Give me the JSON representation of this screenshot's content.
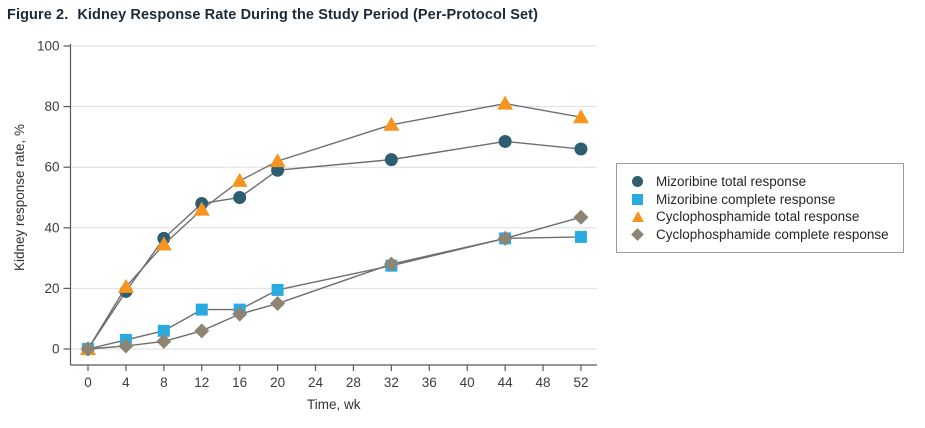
{
  "figure": {
    "label": "Figure 2.",
    "title": "Kidney Response Rate During the Study Period (Per-Protocol Set)"
  },
  "chart_data": {
    "type": "line",
    "x": [
      0,
      4,
      8,
      12,
      16,
      20,
      32,
      44,
      52
    ],
    "x_ticks": [
      0,
      4,
      8,
      12,
      16,
      20,
      24,
      28,
      32,
      36,
      40,
      44,
      48,
      52
    ],
    "y_ticks": [
      0,
      20,
      40,
      60,
      80,
      100
    ],
    "xlabel": "Time, wk",
    "ylabel": "Kidney response rate, %",
    "xlim": [
      0,
      52
    ],
    "ylim": [
      0,
      100
    ],
    "grid": "horizontal",
    "legend_position": "right",
    "series": [
      {
        "name": "Mizoribine total response",
        "marker": "circle",
        "color": "#2d5d70",
        "values": [
          0,
          19,
          36.5,
          48,
          50,
          59,
          62.5,
          68.5,
          66
        ]
      },
      {
        "name": "Mizoribine complete response",
        "marker": "square",
        "color": "#29abe2",
        "values": [
          0,
          3,
          6,
          13,
          13,
          19.5,
          27.5,
          36.5,
          37
        ]
      },
      {
        "name": "Cyclophosphamide total response",
        "marker": "triangle",
        "color": "#f7941e",
        "values": [
          0,
          20.5,
          34.5,
          46,
          55.5,
          62,
          74,
          81,
          76.5
        ]
      },
      {
        "name": "Cyclophosphamide complete response",
        "marker": "diamond",
        "color": "#8d8474",
        "values": [
          0,
          1,
          2.5,
          6,
          11.5,
          15,
          28,
          36.5,
          43.5
        ]
      }
    ],
    "line_color": "#6e6e6e",
    "grid_color": "#dedede",
    "axis_color": "#58595b",
    "tick_label_color": "#3d3d3d"
  }
}
